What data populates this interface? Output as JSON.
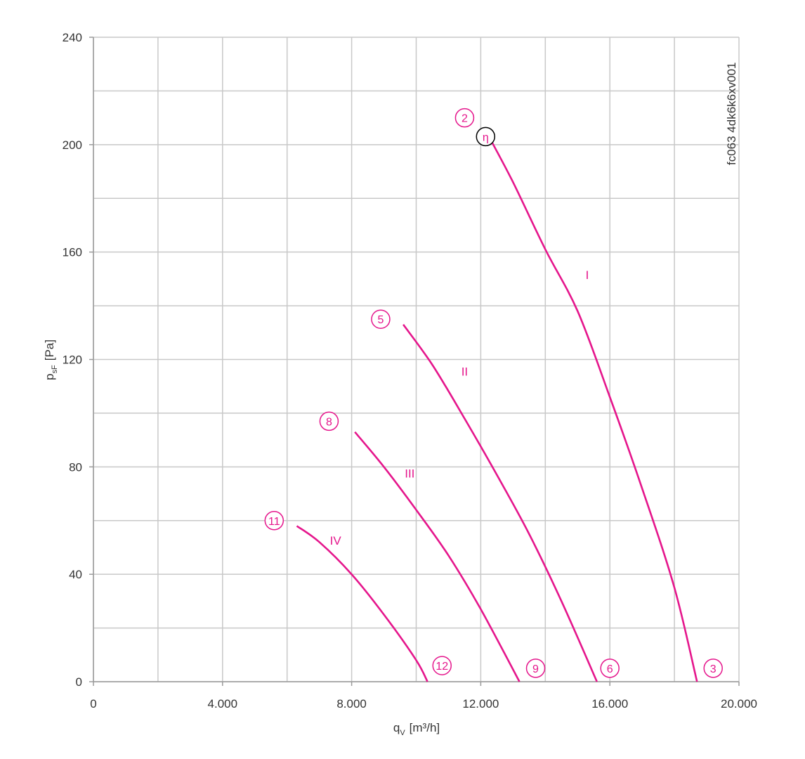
{
  "chart_data": {
    "type": "line",
    "xlabel": "qV [m³/h]",
    "xlabel_main": "q",
    "xlabel_sub": "V",
    "xlabel_unit": "[m³/h]",
    "ylabel": "psF [Pa]",
    "ylabel_main": "p",
    "ylabel_sub": "sF",
    "ylabel_unit": "[Pa]",
    "xlim": [
      0,
      20000
    ],
    "ylim": [
      0,
      240
    ],
    "x_minor_step": 2000,
    "y_minor_step": 20,
    "x_ticks": [
      0,
      4000,
      8000,
      12000,
      16000,
      20000
    ],
    "x_tick_labels": [
      "0",
      "4.000",
      "8.000",
      "12.000",
      "16.000",
      "20.000"
    ],
    "y_ticks": [
      0,
      40,
      80,
      120,
      160,
      200,
      240
    ],
    "y_tick_labels": [
      "0",
      "40",
      "80",
      "120",
      "160",
      "200",
      "240"
    ],
    "grid": true,
    "code": "fc063 4dk6k6xv001",
    "curve_color": "#e5168c",
    "series": [
      {
        "label": "I",
        "label_at": [
          15300,
          150
        ],
        "points": [
          [
            12300,
            202
          ],
          [
            13000,
            186
          ],
          [
            14000,
            161
          ],
          [
            15000,
            138
          ],
          [
            16000,
            106
          ],
          [
            17000,
            72
          ],
          [
            18000,
            35
          ],
          [
            18700,
            0
          ]
        ],
        "start_marker": "2",
        "start_marker_at": [
          11500,
          210
        ],
        "end_marker": "3",
        "end_marker_at": [
          19200,
          5
        ]
      },
      {
        "label": "II",
        "label_at": [
          11500,
          114
        ],
        "points": [
          [
            9600,
            133
          ],
          [
            10500,
            118
          ],
          [
            11500,
            98
          ],
          [
            12500,
            77
          ],
          [
            13500,
            55
          ],
          [
            14500,
            30
          ],
          [
            15600,
            0
          ]
        ],
        "start_marker": "5",
        "start_marker_at": [
          8900,
          135
        ],
        "end_marker": "6",
        "end_marker_at": [
          16000,
          5
        ]
      },
      {
        "label": "III",
        "label_at": [
          9800,
          76
        ],
        "points": [
          [
            8100,
            93
          ],
          [
            9000,
            80
          ],
          [
            10000,
            64
          ],
          [
            11000,
            47
          ],
          [
            12000,
            27
          ],
          [
            13200,
            0
          ]
        ],
        "start_marker": "8",
        "start_marker_at": [
          7300,
          97
        ],
        "end_marker": "9",
        "end_marker_at": [
          13700,
          5
        ]
      },
      {
        "label": "IV",
        "label_at": [
          7500,
          51
        ],
        "points": [
          [
            6300,
            58
          ],
          [
            7000,
            52
          ],
          [
            8000,
            40
          ],
          [
            9000,
            25
          ],
          [
            10000,
            8
          ],
          [
            10350,
            0
          ]
        ],
        "start_marker": "11",
        "start_marker_at": [
          5600,
          60
        ],
        "end_marker": "12",
        "end_marker_at": [
          10800,
          6
        ]
      }
    ],
    "efficiency_marker": {
      "symbol": "η",
      "at": [
        12150,
        203
      ],
      "color": "#000000"
    }
  }
}
